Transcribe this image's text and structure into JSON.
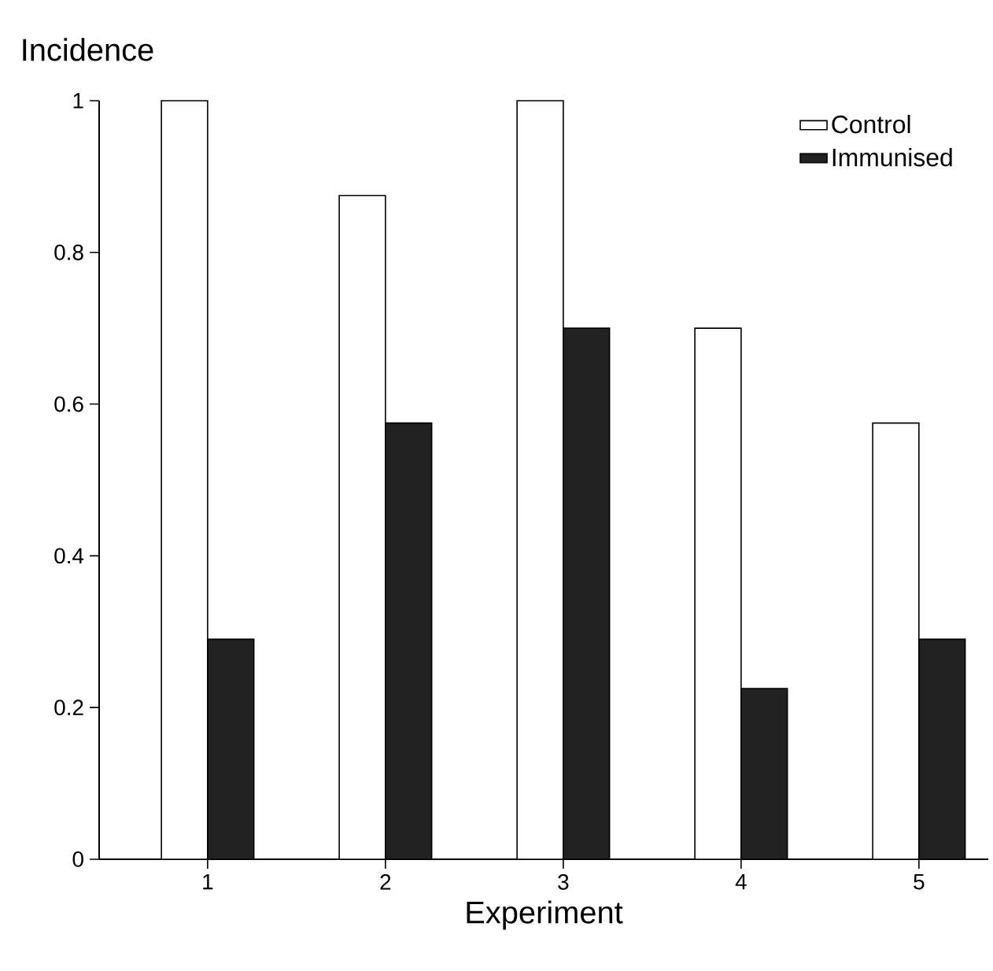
{
  "chart_data": {
    "type": "bar",
    "xlabel": "Experiment",
    "ylabel": "Incidence",
    "categories": [
      "1",
      "2",
      "3",
      "4",
      "5"
    ],
    "series": [
      {
        "name": "Control",
        "color": "#ffffff",
        "values": [
          1,
          0.875,
          1,
          0.7,
          0.575
        ]
      },
      {
        "name": "Immunised",
        "color": "#222222",
        "values": [
          0.29,
          0.575,
          0.7,
          0.225,
          0.29
        ]
      }
    ],
    "ylim": [
      0,
      1
    ],
    "yticks": [
      0,
      0.2,
      0.4,
      0.6,
      0.8,
      1
    ],
    "legend": "top right"
  }
}
